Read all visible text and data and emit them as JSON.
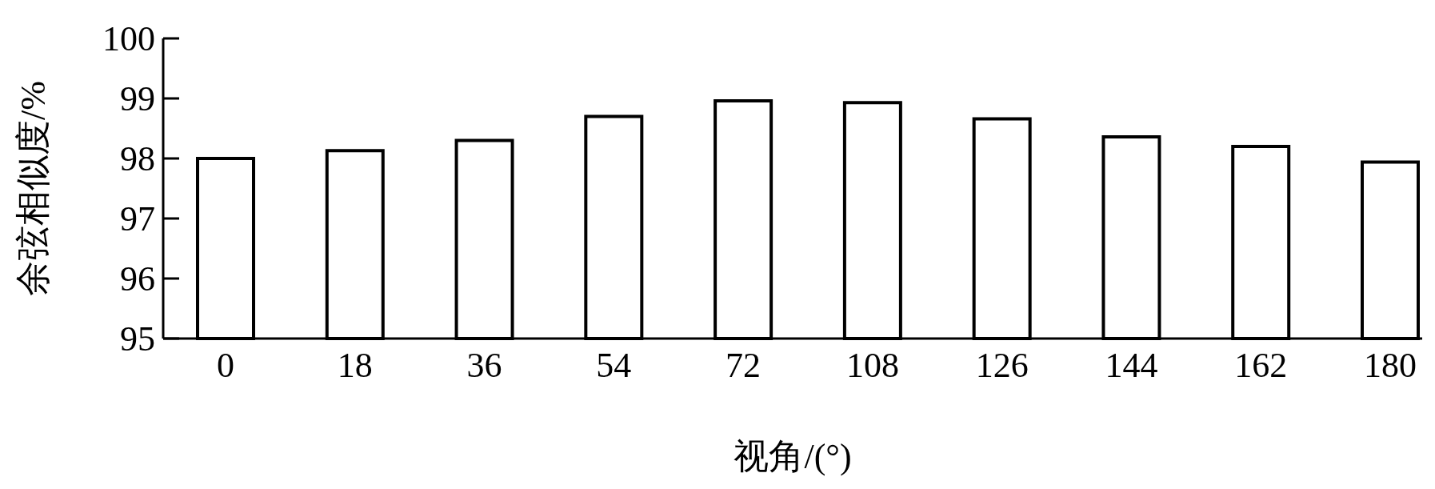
{
  "chart_data": {
    "type": "bar",
    "xlabel": "视角/(°)",
    "ylabel": "余弦相似度/%",
    "categories": [
      "0",
      "18",
      "36",
      "54",
      "72",
      "108",
      "126",
      "144",
      "162",
      "180"
    ],
    "values": [
      98.0,
      98.13,
      98.3,
      98.7,
      98.96,
      98.93,
      98.66,
      98.36,
      98.2,
      97.94
    ],
    "color": "#ffffff",
    "ylim": [
      95,
      100
    ],
    "yticks": [
      95,
      96,
      97,
      98,
      99,
      100
    ],
    "grid": false
  }
}
